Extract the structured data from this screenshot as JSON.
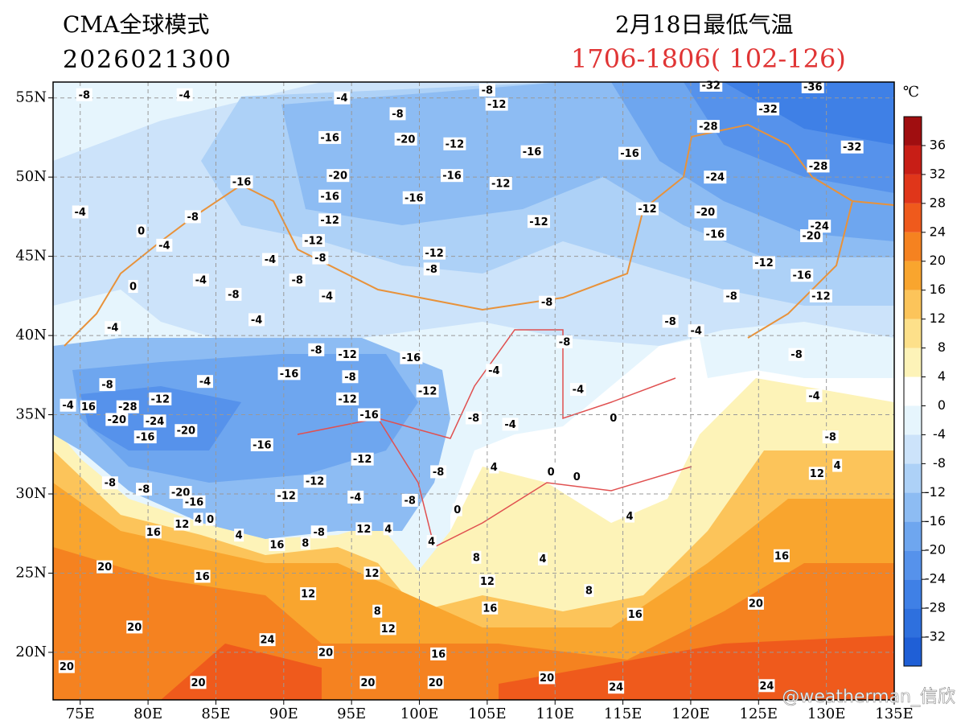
{
  "header": {
    "model": "CMA全球模式",
    "init_time": "2026021300",
    "title": "2月18日最低气温",
    "period": "1706-1806( 102-126)"
  },
  "map": {
    "lon_lim": [
      73,
      135
    ],
    "lat_lim": [
      17,
      56
    ],
    "xticks": [
      {
        "value": 75,
        "label": "75E"
      },
      {
        "value": 80,
        "label": "80E"
      },
      {
        "value": 85,
        "label": "85E"
      },
      {
        "value": 90,
        "label": "90E"
      },
      {
        "value": 95,
        "label": "95E"
      },
      {
        "value": 100,
        "label": "100E"
      },
      {
        "value": 105,
        "label": "105E"
      },
      {
        "value": 110,
        "label": "110E"
      },
      {
        "value": 115,
        "label": "115E"
      },
      {
        "value": 120,
        "label": "120E"
      },
      {
        "value": 125,
        "label": "125E"
      },
      {
        "value": 130,
        "label": "130E"
      },
      {
        "value": 135,
        "label": "135E"
      }
    ],
    "yticks": [
      {
        "value": 20,
        "label": "20N"
      },
      {
        "value": 25,
        "label": "25N"
      },
      {
        "value": 30,
        "label": "30N"
      },
      {
        "value": 35,
        "label": "35N"
      },
      {
        "value": 40,
        "label": "40N"
      },
      {
        "value": 45,
        "label": "45N"
      },
      {
        "value": 50,
        "label": "50N"
      },
      {
        "value": 55,
        "label": "55N"
      }
    ],
    "grid": true
  },
  "contour_labels": {
    "lon": [
      75.3,
      82.7,
      94.3,
      105,
      105.7,
      121.5,
      129,
      125.7,
      98.4,
      93.4,
      99,
      102.6,
      108.3,
      115.5,
      121.3,
      131.9,
      86.9,
      94,
      102.4,
      106,
      121.8,
      129.4,
      75,
      83.3,
      93.4,
      99.6,
      108.8,
      116.8,
      121.1,
      129.5,
      93.4,
      92.2,
      121.8,
      128.9,
      79.5,
      81.2,
      92.7,
      89,
      101.1,
      100.9,
      125.4,
      128.2,
      78.9,
      83.9,
      91,
      86.3,
      93.2,
      109.4,
      123,
      129.6,
      77.4,
      88,
      118.5,
      120.4,
      92.4,
      94.7,
      99.4,
      110.7,
      127.8,
      90.4,
      94.9,
      105.5,
      77,
      84.2,
      111.7,
      129.1,
      80.9,
      78.5,
      94.7,
      100.6,
      74.1,
      75.6,
      77.7,
      80.5,
      96.3,
      104,
      106.7,
      114.3,
      82.8,
      79.8,
      88.4,
      130.3,
      95.8,
      105.5,
      101.4,
      109.7,
      111.6,
      130.8,
      129.3,
      77.2,
      79.7,
      82.4,
      92.3,
      90.2,
      95.3,
      99.3,
      102.8,
      83.4,
      82.5,
      83.7,
      84.6,
      115.5,
      92.6,
      95.9,
      97.7,
      80.4,
      86.7,
      91.6,
      89.5,
      100.9,
      104.2,
      109.1,
      126.7,
      76.8,
      84,
      96.5,
      105,
      112.5,
      91.8,
      124.8,
      96.9,
      105.2,
      115.9,
      79,
      97.7,
      88.8,
      93.1,
      101.4,
      74,
      109.4,
      83.7,
      96.2,
      101.2,
      114.5,
      125.6
    ],
    "lat": [
      55.2,
      55.2,
      55,
      55.5,
      54.6,
      55.8,
      55.7,
      54.3,
      54,
      52.5,
      52.4,
      52.1,
      51.6,
      51.5,
      53.2,
      51.9,
      49.7,
      50.1,
      50.1,
      49.6,
      50,
      50.7,
      47.8,
      47.5,
      48.8,
      48.7,
      47.2,
      48,
      47.8,
      46.9,
      47.3,
      46,
      46.4,
      46.3,
      46.6,
      45.7,
      44.9,
      44.8,
      45.2,
      44.2,
      44.6,
      43.8,
      43.1,
      43.5,
      43.5,
      42.6,
      42.5,
      42.1,
      42.5,
      42.5,
      40.5,
      41,
      40.9,
      40.3,
      39.1,
      38.8,
      38.6,
      39.6,
      38.8,
      37.6,
      37.4,
      37.8,
      36.9,
      37.1,
      36.6,
      36.2,
      36,
      35.5,
      36,
      36.5,
      35.6,
      35.5,
      34.7,
      34.6,
      35,
      34.8,
      34.4,
      34.8,
      34,
      33.6,
      33.1,
      33.6,
      32.2,
      31.7,
      31.4,
      31.4,
      31.1,
      31.8,
      31.3,
      30.7,
      30.3,
      30.1,
      30.8,
      29.9,
      29.8,
      29.6,
      29,
      29.5,
      28.1,
      28.4,
      28.4,
      28.6,
      27.6,
      27.8,
      27.8,
      27.6,
      27.4,
      26.9,
      26.8,
      27,
      26,
      25.9,
      26.1,
      25.4,
      24.8,
      25,
      24.5,
      23.9,
      23.7,
      23.1,
      22.6,
      22.8,
      22.4,
      21.6,
      21.5,
      20.8,
      20,
      19.9,
      19.1,
      18.4,
      18.1,
      18.1,
      18.1,
      17.8,
      17.9
    ],
    "values": [
      -8,
      -4,
      -4,
      -8,
      -12,
      -32,
      -36,
      -32,
      -8,
      -16,
      -20,
      -12,
      -16,
      -16,
      -28,
      -32,
      -16,
      -20,
      -16,
      -12,
      -24,
      -28,
      -4,
      -8,
      -16,
      -16,
      -12,
      -12,
      -20,
      -24,
      -12,
      -12,
      -16,
      -20,
      0,
      -4,
      -8,
      -4,
      -12,
      -8,
      -12,
      -16,
      0,
      -4,
      -8,
      -8,
      -4,
      -8,
      -8,
      -12,
      -4,
      -4,
      -8,
      -4,
      -8,
      -12,
      -16,
      -8,
      -8,
      -16,
      -8,
      -4,
      -8,
      -4,
      -4,
      -4,
      -12,
      -28,
      -12,
      -12,
      -4,
      16,
      -20,
      -24,
      -16,
      -8,
      -4,
      0,
      -20,
      -16,
      -16,
      -8,
      -12,
      4,
      -8,
      0,
      0,
      4,
      12,
      -8,
      -8,
      -20,
      -12,
      -12,
      -4,
      -8,
      0,
      -16,
      12,
      4,
      0,
      4,
      -8,
      12,
      4,
      16,
      4,
      8,
      16,
      4,
      8,
      4,
      16,
      20,
      16,
      12,
      12,
      8,
      12,
      20,
      8,
      16,
      16,
      20,
      12,
      24,
      20,
      16,
      20,
      20,
      20,
      20,
      20,
      24,
      24
    ]
  },
  "colorbar": {
    "unit": "℃",
    "lim": [
      -36,
      40
    ],
    "levels": [
      -36,
      -32,
      -28,
      -24,
      -20,
      -16,
      -12,
      -8,
      -4,
      0,
      4,
      8,
      12,
      16,
      20,
      24,
      28,
      32,
      36,
      40
    ],
    "colors": [
      "#1f5fd6",
      "#2e70de",
      "#3f80e6",
      "#5692eb",
      "#6ea6ef",
      "#8dbcf3",
      "#add1f7",
      "#cce3fa",
      "#e6f5fd",
      "#ffffff",
      "#fdf3b8",
      "#fde08a",
      "#fcc45a",
      "#f9a52e",
      "#f58220",
      "#ef5a1c",
      "#e0361a",
      "#c81e16",
      "#a00e10"
    ],
    "ticks": [
      36,
      32,
      28,
      24,
      20,
      16,
      12,
      8,
      4,
      0,
      -4,
      -8,
      -12,
      -16,
      -20,
      -24,
      -28,
      -32
    ]
  },
  "watermark": "@weatherman_信欣"
}
